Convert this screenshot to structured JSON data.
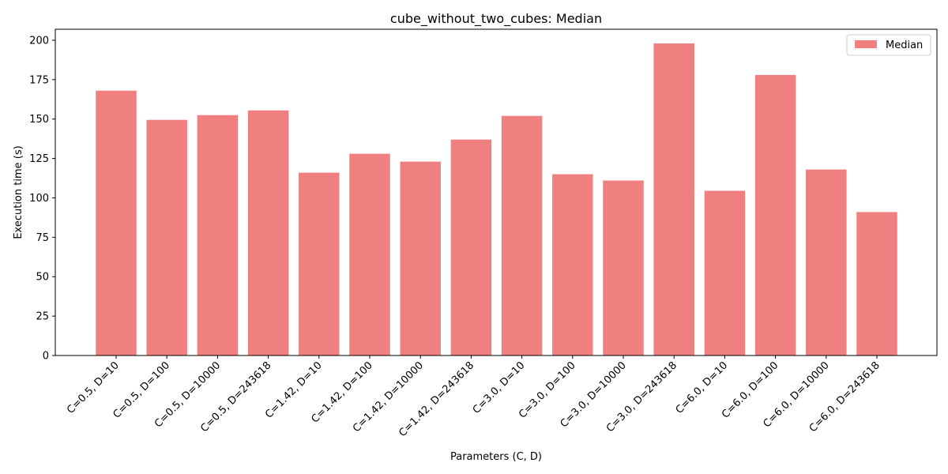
{
  "chart_data": {
    "type": "bar",
    "title": "cube_without_two_cubes: Median",
    "xlabel": "Parameters (C, D)",
    "ylabel": "Execution time (s)",
    "categories": [
      "C=0.5, D=10",
      "C=0.5, D=100",
      "C=0.5, D=10000",
      "C=0.5, D=243618",
      "C=1.42, D=10",
      "C=1.42, D=100",
      "C=1.42, D=10000",
      "C=1.42, D=243618",
      "C=3.0, D=10",
      "C=3.0, D=100",
      "C=3.0, D=10000",
      "C=3.0, D=243618",
      "C=6.0, D=10",
      "C=6.0, D=100",
      "C=6.0, D=10000",
      "C=6.0, D=243618"
    ],
    "series": [
      {
        "name": "Median",
        "color": "#f08080",
        "values": [
          168,
          149.5,
          152.5,
          155.5,
          116,
          128,
          123,
          137,
          152,
          115,
          111,
          198,
          104.5,
          178,
          118,
          91
        ]
      }
    ],
    "ylim": [
      0,
      207
    ],
    "yticks": [
      0,
      25,
      50,
      75,
      100,
      125,
      150,
      175,
      200
    ],
    "grid": false,
    "legend": "upper right"
  }
}
